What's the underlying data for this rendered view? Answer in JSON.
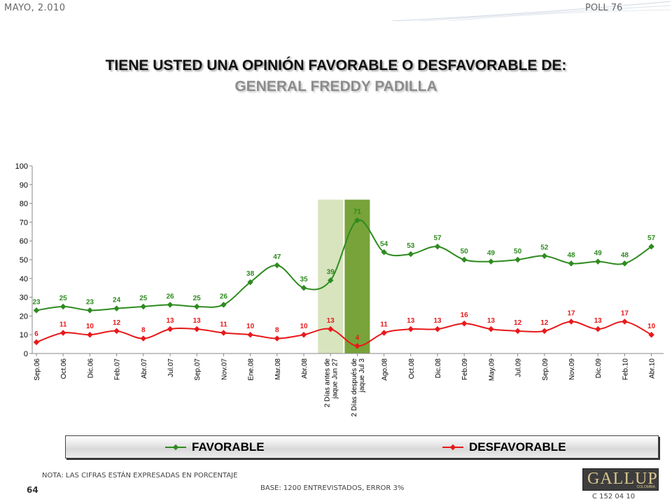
{
  "header": {
    "date": "MAYO, 2.010",
    "poll": "POLL 76"
  },
  "title": {
    "line1": "TIENE USTED UNA OPINIÓN FAVORABLE O DESFAVORABLE DE:",
    "line2": "GENERAL FREDDY PADILLA"
  },
  "footer": {
    "note": "NOTA: LAS CIFRAS ESTÁN EXPRESADAS EN PORCENTAJE",
    "base": "BASE: 1200 ENTREVISTADOS, ERROR 3%",
    "page": "64",
    "code": "C 152 04 10",
    "logo": "GALLUP",
    "logo_sub": "COLOMBIA"
  },
  "colors": {
    "favorable": "#2e8b1f",
    "desfavorable": "#e8191b",
    "band_light": "#d7e4bd",
    "band_dark": "#77a33a"
  },
  "chart_data": {
    "type": "line",
    "categories": [
      "Sep.06",
      "Oct.06",
      "Dic.06",
      "Feb.07",
      "Abr.07",
      "Jul.07",
      "Sep.07",
      "Nov.07",
      "Ene.08",
      "Mar.08",
      "Abr.08",
      "2 Días antes de jaque Jun 27",
      "2 Días después de jaque Jul 3",
      "Ago.08",
      "Oct.08",
      "Dic.08",
      "Feb.09",
      "May.09",
      "Jul.09",
      "Sep.09",
      "Nov.09",
      "Dic.09",
      "Feb.10",
      "Abr.10"
    ],
    "series": [
      {
        "name": "FAVORABLE",
        "values": [
          23,
          25,
          23,
          24,
          25,
          26,
          25,
          26,
          38,
          47,
          35,
          39,
          71,
          54,
          53,
          57,
          50,
          49,
          50,
          52,
          48,
          49,
          48,
          57
        ]
      },
      {
        "name": "DESFAVORABLE",
        "values": [
          6,
          11,
          10,
          12,
          8,
          13,
          13,
          11,
          10,
          8,
          10,
          13,
          4,
          11,
          13,
          13,
          16,
          13,
          12,
          12,
          17,
          13,
          17,
          10
        ]
      }
    ],
    "yticks": [
      0,
      10,
      20,
      30,
      40,
      50,
      60,
      70,
      80,
      90,
      100
    ],
    "ylim": [
      0,
      100
    ],
    "highlight_categories": [
      "2 Días antes de jaque Jun 27",
      "2 Días después de jaque Jul 3"
    ],
    "legend_position": "bottom"
  }
}
